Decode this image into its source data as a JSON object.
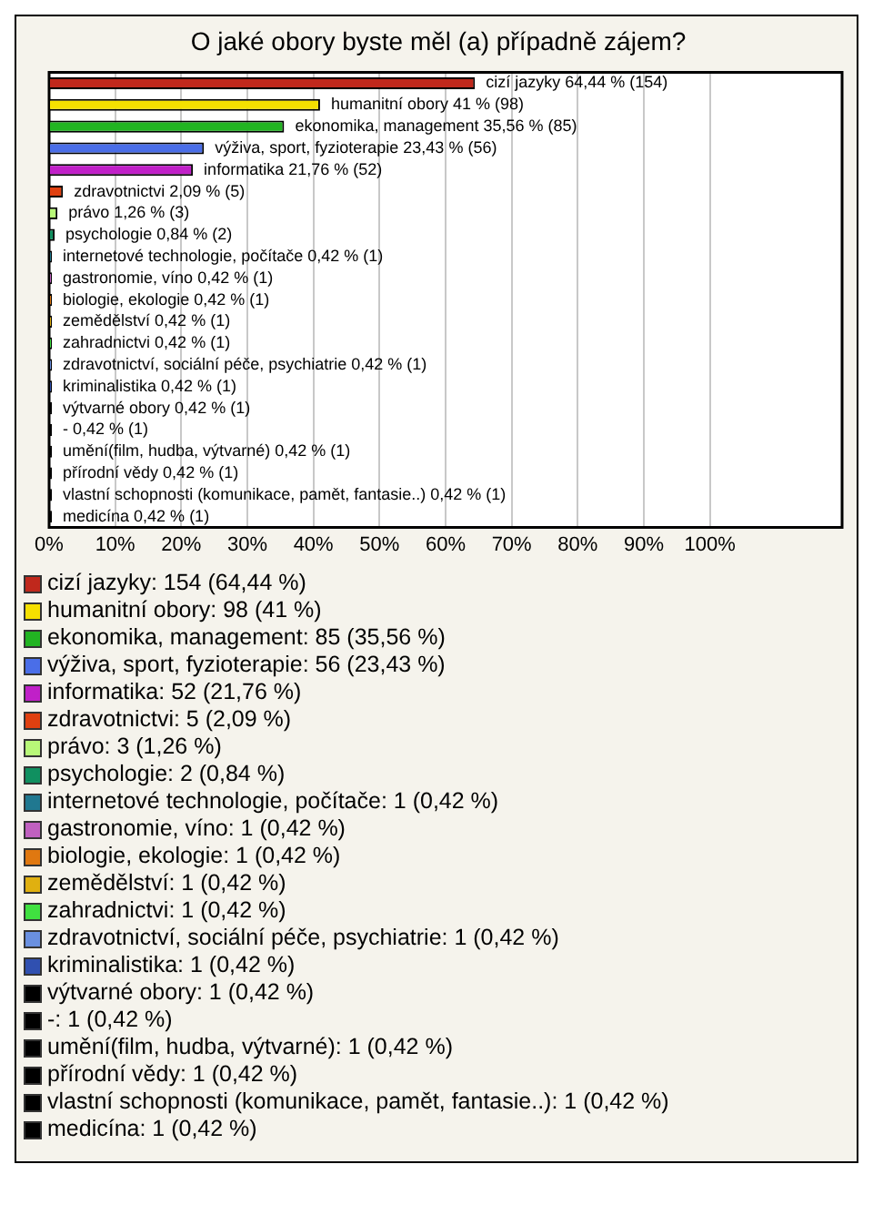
{
  "chart_data": {
    "type": "bar",
    "orientation": "horizontal",
    "title": "O jaké obory byste měl (a) případně zájem?",
    "categories": [
      "cizí jazyky",
      "humanitní obory",
      "ekonomika, management",
      "výživa, sport, fyzioterapie",
      "informatika",
      "zdravotnictvi",
      "právo",
      "psychologie",
      "internetové technologie, počítače",
      "gastronomie, víno",
      "biologie, ekologie",
      "zemědělství",
      "zahradnictvi",
      "zdravotnictví, sociální péče, psychiatrie",
      "kriminalistika",
      "výtvarné obory",
      "-",
      "umění(film, hudba, výtvarné)",
      "přírodní vědy",
      "vlastní schopnosti (komunikace, pamět, fantasie..)",
      "medicína"
    ],
    "values": [
      64.44,
      41,
      35.56,
      23.43,
      21.76,
      2.09,
      1.26,
      0.84,
      0.42,
      0.42,
      0.42,
      0.42,
      0.42,
      0.42,
      0.42,
      0.42,
      0.42,
      0.42,
      0.42,
      0.42,
      0.42
    ],
    "colors": [
      "#c0281c",
      "#f5e000",
      "#22b422",
      "#4a6ee8",
      "#c020c8",
      "#e04010",
      "#b8f878",
      "#109060",
      "#207890",
      "#c060c0",
      "#e07810",
      "#e0b010",
      "#40e040",
      "#6a90e0",
      "#3050b0",
      "#000000",
      "#000000",
      "#000000",
      "#000000",
      "#000000",
      "#000000"
    ],
    "value_labels": [
      "64,44 % (154)",
      "41 % (98)",
      "35,56 % (85)",
      "23,43 % (56)",
      "21,76 % (52)",
      "2,09 % (5)",
      "1,26 % (3)",
      "0,84 % (2)",
      "0,42 % (1)",
      "0,42 % (1)",
      "0,42 % (1)",
      "0,42 % (1)",
      "0,42 % (1)",
      "0,42 % (1)",
      "0,42 % (1)",
      "0,42 % (1)",
      "0,42 % (1)",
      "0,42 % (1)",
      "0,42 % (1)",
      "0,42 % (1)",
      "0,42 % (1)"
    ],
    "annotations": [
      "cizí jazyky: 154 (64,44 %)",
      "humanitní obory: 98 (41 %)",
      "ekonomika, management: 85 (35,56 %)",
      "výživa, sport, fyzioterapie: 56 (23,43 %)",
      "informatika: 52 (21,76 %)",
      "zdravotnictvi: 5 (2,09 %)",
      "právo: 3 (1,26 %)",
      "psychologie: 2 (0,84 %)",
      "internetové technologie, počítače: 1 (0,42 %)",
      "gastronomie, víno: 1 (0,42 %)",
      "biologie, ekologie: 1 (0,42 %)",
      "zemědělství: 1 (0,42 %)",
      "zahradnictvi: 1 (0,42 %)",
      "zdravotnictví, sociální péče, psychiatrie: 1 (0,42 %)",
      "kriminalistika: 1 (0,42 %)",
      "výtvarné obory: 1 (0,42 %)",
      "-: 1 (0,42 %)",
      "umění(film, hudba, výtvarné): 1 (0,42 %)",
      "přírodní vědy: 1 (0,42 %)",
      "vlastní schopnosti (komunikace, pamět, fantasie..): 1 (0,42 %)",
      "medicína: 1 (0,42 %)"
    ],
    "xlim": [
      0,
      120
    ],
    "xticks": [
      {
        "value": 0,
        "label": "0%"
      },
      {
        "value": 10,
        "label": "10%"
      },
      {
        "value": 20,
        "label": "20%"
      },
      {
        "value": 30,
        "label": "30%"
      },
      {
        "value": 40,
        "label": "40%"
      },
      {
        "value": 50,
        "label": "50%"
      },
      {
        "value": 60,
        "label": "60%"
      },
      {
        "value": 70,
        "label": "70%"
      },
      {
        "value": 80,
        "label": "80%"
      },
      {
        "value": 90,
        "label": "90%"
      },
      {
        "value": 100,
        "label": "100%"
      }
    ],
    "grid": "x",
    "tick_labels": "x"
  }
}
